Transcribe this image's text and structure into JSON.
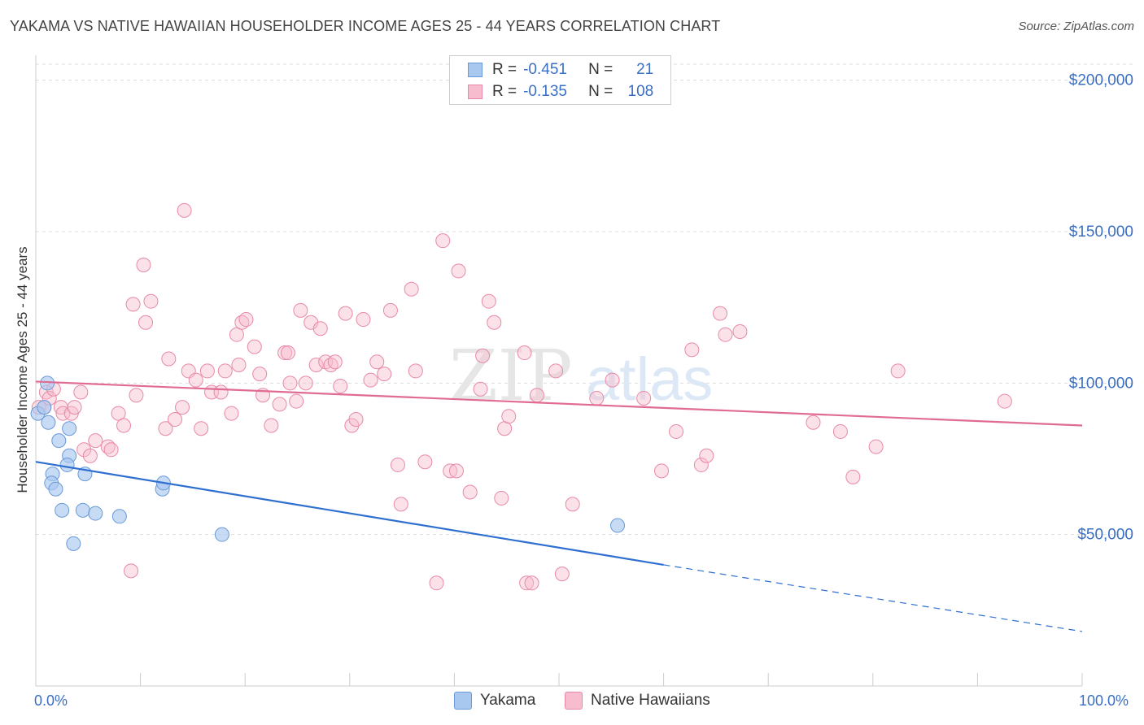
{
  "header": {
    "title": "YAKAMA VS NATIVE HAWAIIAN HOUSEHOLDER INCOME AGES 25 - 44 YEARS CORRELATION CHART",
    "source": "Source: ZipAtlas.com"
  },
  "watermark": {
    "zip": "ZIP",
    "atlas": "atlas"
  },
  "legend": {
    "rows": [
      {
        "r_label": "R =",
        "r_value": "-0.451",
        "n_label": "N =",
        "n_value": "21",
        "color": "#a9c8f0",
        "border": "#6a9ad8"
      },
      {
        "r_label": "R =",
        "r_value": "-0.135",
        "n_label": "N =",
        "n_value": "108",
        "color": "#f7bccd",
        "border": "#e889a8"
      }
    ]
  },
  "bottom_legend": {
    "yakama": "Yakama",
    "hawaiian": "Native Hawaiians"
  },
  "colors": {
    "yakama_fill": "#a9c8f0",
    "yakama_stroke": "#6a9ad8",
    "yakama_line": "#2f6fd0",
    "hawaiian_fill": "#f7bccd",
    "hawaiian_stroke": "#e889a8",
    "hawaiian_line": "#e06c93",
    "grid": "#dddddd",
    "axis_text": "#3a6fc4"
  },
  "chart_data": {
    "type": "scatter",
    "title": "YAKAMA VS NATIVE HAWAIIAN HOUSEHOLDER INCOME AGES 25 - 44 YEARS CORRELATION CHART",
    "xlabel": "",
    "ylabel": "Householder Income Ages 25 - 44 years",
    "xlim": [
      0,
      100
    ],
    "ylim": [
      0,
      205000
    ],
    "x_tick_labels": [
      "0.0%",
      "100.0%"
    ],
    "y_ticks": [
      50000,
      100000,
      150000,
      200000
    ],
    "y_tick_labels": [
      "$50,000",
      "$100,000",
      "$150,000",
      "$200,000"
    ],
    "grid": "horizontal dashed",
    "legend_position": "top-center",
    "series": [
      {
        "name": "Yakama",
        "points": [
          [
            0.2,
            90000
          ],
          [
            0.8,
            92000
          ],
          [
            1.2,
            87000
          ],
          [
            1.1,
            100000
          ],
          [
            3.2,
            85000
          ],
          [
            2.2,
            81000
          ],
          [
            3.2,
            76000
          ],
          [
            3.0,
            73000
          ],
          [
            4.7,
            70000
          ],
          [
            1.6,
            70000
          ],
          [
            1.5,
            67000
          ],
          [
            1.9,
            65000
          ],
          [
            2.5,
            58000
          ],
          [
            4.5,
            58000
          ],
          [
            5.7,
            57000
          ],
          [
            8.0,
            56000
          ],
          [
            12.1,
            65000
          ],
          [
            12.2,
            67000
          ],
          [
            3.6,
            47000
          ],
          [
            17.8,
            50000
          ],
          [
            55.6,
            53000
          ]
        ],
        "trend": {
          "x0": 0,
          "y0": 74000,
          "x1": 60,
          "y1": 40000,
          "dashed_to_x": 100,
          "dashed_to_y": 18000
        }
      },
      {
        "name": "Native Hawaiians",
        "points": [
          [
            0.3,
            92000
          ],
          [
            0.8,
            92000
          ],
          [
            1.0,
            97000
          ],
          [
            1.3,
            95000
          ],
          [
            1.7,
            98000
          ],
          [
            2.4,
            92000
          ],
          [
            2.6,
            90000
          ],
          [
            3.4,
            90000
          ],
          [
            3.7,
            92000
          ],
          [
            4.3,
            97000
          ],
          [
            4.6,
            78000
          ],
          [
            5.2,
            76000
          ],
          [
            5.7,
            81000
          ],
          [
            6.9,
            79000
          ],
          [
            7.2,
            78000
          ],
          [
            7.9,
            90000
          ],
          [
            8.4,
            86000
          ],
          [
            9.1,
            38000
          ],
          [
            9.3,
            126000
          ],
          [
            9.6,
            96000
          ],
          [
            10.3,
            139000
          ],
          [
            10.5,
            120000
          ],
          [
            11.0,
            127000
          ],
          [
            12.4,
            85000
          ],
          [
            12.7,
            108000
          ],
          [
            13.3,
            88000
          ],
          [
            14.0,
            92000
          ],
          [
            14.2,
            157000
          ],
          [
            14.6,
            104000
          ],
          [
            15.3,
            101000
          ],
          [
            15.8,
            85000
          ],
          [
            16.4,
            104000
          ],
          [
            16.8,
            97000
          ],
          [
            17.7,
            97000
          ],
          [
            18.1,
            104000
          ],
          [
            18.7,
            90000
          ],
          [
            19.2,
            116000
          ],
          [
            19.4,
            106000
          ],
          [
            19.7,
            120000
          ],
          [
            20.1,
            121000
          ],
          [
            20.9,
            112000
          ],
          [
            21.4,
            103000
          ],
          [
            21.7,
            96000
          ],
          [
            22.5,
            86000
          ],
          [
            23.3,
            93000
          ],
          [
            23.8,
            110000
          ],
          [
            24.3,
            100000
          ],
          [
            24.9,
            94000
          ],
          [
            25.3,
            124000
          ],
          [
            25.8,
            100000
          ],
          [
            26.3,
            120000
          ],
          [
            26.8,
            106000
          ],
          [
            27.2,
            118000
          ],
          [
            27.7,
            107000
          ],
          [
            28.2,
            106000
          ],
          [
            28.6,
            107000
          ],
          [
            29.1,
            99000
          ],
          [
            29.6,
            123000
          ],
          [
            30.2,
            86000
          ],
          [
            30.6,
            88000
          ],
          [
            31.3,
            121000
          ],
          [
            32.0,
            101000
          ],
          [
            32.6,
            107000
          ],
          [
            33.3,
            103000
          ],
          [
            33.9,
            124000
          ],
          [
            34.6,
            73000
          ],
          [
            34.9,
            60000
          ],
          [
            35.9,
            131000
          ],
          [
            36.3,
            104000
          ],
          [
            37.2,
            74000
          ],
          [
            38.3,
            34000
          ],
          [
            38.9,
            147000
          ],
          [
            39.6,
            71000
          ],
          [
            40.2,
            71000
          ],
          [
            40.4,
            137000
          ],
          [
            41.5,
            64000
          ],
          [
            42.5,
            98000
          ],
          [
            42.7,
            109000
          ],
          [
            43.3,
            127000
          ],
          [
            43.8,
            120000
          ],
          [
            44.5,
            62000
          ],
          [
            44.8,
            85000
          ],
          [
            45.2,
            89000
          ],
          [
            46.7,
            110000
          ],
          [
            46.9,
            34000
          ],
          [
            47.4,
            34000
          ],
          [
            47.9,
            96000
          ],
          [
            49.7,
            104000
          ],
          [
            50.3,
            37000
          ],
          [
            51.3,
            60000
          ],
          [
            53.6,
            95000
          ],
          [
            55.1,
            101000
          ],
          [
            59.8,
            71000
          ],
          [
            61.2,
            84000
          ],
          [
            62.7,
            111000
          ],
          [
            63.6,
            73000
          ],
          [
            64.1,
            76000
          ],
          [
            65.4,
            123000
          ],
          [
            65.9,
            116000
          ],
          [
            67.3,
            117000
          ],
          [
            74.3,
            87000
          ],
          [
            76.9,
            84000
          ],
          [
            78.1,
            69000
          ],
          [
            80.3,
            79000
          ],
          [
            82.4,
            104000
          ],
          [
            92.6,
            94000
          ],
          [
            58.1,
            95000
          ],
          [
            24.1,
            110000
          ]
        ],
        "trend": {
          "x0": 0,
          "y0": 100500,
          "x1": 100,
          "y1": 86000
        }
      }
    ]
  }
}
